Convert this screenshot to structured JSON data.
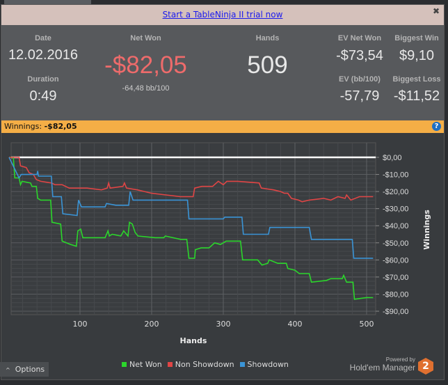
{
  "banner": {
    "link": "Start a TableNinja II trial now",
    "close": "✖"
  },
  "stats": {
    "date_label": "Date",
    "date": "12.02.2016",
    "duration_label": "Duration",
    "duration": "0:49",
    "net_won_label": "Net Won",
    "net_won": "-$82,05",
    "bb100": "-64,48 bb/100",
    "hands_label": "Hands",
    "hands": "509",
    "ev_net_won_label": "EV Net Won",
    "ev_net_won": "-$73,54",
    "biggest_win_label": "Biggest Win",
    "biggest_win": "$9,10",
    "ev_bb_label": "EV (bb/100)",
    "ev_bb": "-57,79",
    "biggest_loss_label": "Biggest Loss",
    "biggest_loss": "-$11,52",
    "net_won_color": "#ee6b6b"
  },
  "winnings_bar": {
    "label": "Winnings:",
    "value": "-$82,05",
    "help": "?"
  },
  "chart_data": {
    "type": "line",
    "xlabel": "Hands",
    "ylabel": "Winnings",
    "xlim": [
      0,
      512
    ],
    "ylim": [
      -93,
      3
    ],
    "xticks": [
      100,
      200,
      300,
      400,
      500
    ],
    "yticks": [
      0,
      -10,
      -20,
      -30,
      -40,
      -50,
      -60,
      -70,
      -80,
      -90
    ],
    "ytick_labels": [
      "$0,00",
      "-$10,00",
      "-$20,00",
      "-$30,00",
      "-$40,00",
      "-$50,00",
      "-$60,00",
      "-$70,00",
      "-$80,00",
      "-$90,00"
    ],
    "grid": true,
    "legend": "bottom",
    "series": [
      {
        "name": "Net Won",
        "color": "#2bd62b",
        "points": [
          [
            1,
            0
          ],
          [
            7,
            0
          ],
          [
            9,
            -12
          ],
          [
            15,
            -12
          ],
          [
            17,
            -16
          ],
          [
            19,
            -14
          ],
          [
            31,
            -15
          ],
          [
            33,
            -17
          ],
          [
            39,
            -17
          ],
          [
            41,
            -24
          ],
          [
            45,
            -25
          ],
          [
            59,
            -25
          ],
          [
            61,
            -38
          ],
          [
            73,
            -39
          ],
          [
            75,
            -49
          ],
          [
            87,
            -51
          ],
          [
            95,
            -52
          ],
          [
            97,
            -43
          ],
          [
            101,
            -42
          ],
          [
            104,
            -47
          ],
          [
            135,
            -47
          ],
          [
            139,
            -43
          ],
          [
            141,
            -46
          ],
          [
            145,
            -45
          ],
          [
            157,
            -46
          ],
          [
            161,
            -43
          ],
          [
            167,
            -46
          ],
          [
            169,
            -38
          ],
          [
            173,
            -39
          ],
          [
            177,
            -44
          ],
          [
            181,
            -46
          ],
          [
            205,
            -47
          ],
          [
            217,
            -47
          ],
          [
            219,
            -46
          ],
          [
            241,
            -48
          ],
          [
            249,
            -48
          ],
          [
            252,
            -59
          ],
          [
            260,
            -59
          ],
          [
            261,
            -54
          ],
          [
            269,
            -53
          ],
          [
            280,
            -53
          ],
          [
            288,
            -50
          ],
          [
            296,
            -51
          ],
          [
            304,
            -49
          ],
          [
            324,
            -49
          ],
          [
            327,
            -60
          ],
          [
            348,
            -60
          ],
          [
            354,
            -63
          ],
          [
            362,
            -62
          ],
          [
            364,
            -60
          ],
          [
            376,
            -62
          ],
          [
            388,
            -62
          ],
          [
            390,
            -65
          ],
          [
            400,
            -66
          ],
          [
            406,
            -68
          ],
          [
            420,
            -68
          ],
          [
            423,
            -73
          ],
          [
            444,
            -72
          ],
          [
            450,
            -71
          ],
          [
            466,
            -71
          ],
          [
            468,
            -69
          ],
          [
            472,
            -73
          ],
          [
            481,
            -73
          ],
          [
            483,
            -83
          ],
          [
            500,
            -82
          ],
          [
            509,
            -82.05
          ]
        ]
      },
      {
        "name": "Non Showdown",
        "color": "#e04545",
        "points": [
          [
            1,
            0
          ],
          [
            15,
            0
          ],
          [
            17,
            -5
          ],
          [
            25,
            -6
          ],
          [
            29,
            -9
          ],
          [
            35,
            -10
          ],
          [
            39,
            -13
          ],
          [
            45,
            -14
          ],
          [
            60,
            -15
          ],
          [
            65,
            -16
          ],
          [
            75,
            -16
          ],
          [
            85,
            -18
          ],
          [
            110,
            -18
          ],
          [
            130,
            -19
          ],
          [
            138,
            -18
          ],
          [
            140,
            -15
          ],
          [
            142,
            -18
          ],
          [
            160,
            -17
          ],
          [
            162,
            -15
          ],
          [
            165,
            -18
          ],
          [
            180,
            -19
          ],
          [
            190,
            -20
          ],
          [
            200,
            -21
          ],
          [
            220,
            -22
          ],
          [
            240,
            -23
          ],
          [
            258,
            -23
          ],
          [
            260,
            -18
          ],
          [
            270,
            -17
          ],
          [
            285,
            -17
          ],
          [
            293,
            -14
          ],
          [
            300,
            -16
          ],
          [
            305,
            -14
          ],
          [
            320,
            -14
          ],
          [
            350,
            -15
          ],
          [
            353,
            -18
          ],
          [
            370,
            -19
          ],
          [
            380,
            -20
          ],
          [
            385,
            -21
          ],
          [
            390,
            -21
          ],
          [
            395,
            -24
          ],
          [
            405,
            -25
          ],
          [
            410,
            -26
          ],
          [
            420,
            -25
          ],
          [
            440,
            -24
          ],
          [
            450,
            -25
          ],
          [
            460,
            -23
          ],
          [
            470,
            -24
          ],
          [
            472,
            -22
          ],
          [
            478,
            -25
          ],
          [
            490,
            -23
          ],
          [
            509,
            -23
          ]
        ]
      },
      {
        "name": "Showdown",
        "color": "#3a94d6",
        "points": [
          [
            1,
            0
          ],
          [
            15,
            -12
          ],
          [
            18,
            -10
          ],
          [
            40,
            -10
          ],
          [
            41,
            -8
          ],
          [
            42,
            -11
          ],
          [
            60,
            -11
          ],
          [
            62,
            -23
          ],
          [
            74,
            -23
          ],
          [
            76,
            -33
          ],
          [
            96,
            -34
          ],
          [
            98,
            -25
          ],
          [
            102,
            -29
          ],
          [
            135,
            -29
          ],
          [
            137,
            -27
          ],
          [
            150,
            -28
          ],
          [
            168,
            -28
          ],
          [
            170,
            -20
          ],
          [
            174,
            -25
          ],
          [
            250,
            -25
          ],
          [
            252,
            -36
          ],
          [
            300,
            -36
          ],
          [
            302,
            -35
          ],
          [
            326,
            -35
          ],
          [
            328,
            -45
          ],
          [
            363,
            -45
          ],
          [
            365,
            -41
          ],
          [
            420,
            -41
          ],
          [
            423,
            -48
          ],
          [
            480,
            -48
          ],
          [
            482,
            -59
          ],
          [
            509,
            -59
          ]
        ]
      }
    ]
  },
  "footer": {
    "options": "Options",
    "options_icon": "chevron-up",
    "powered_by": "Powered by",
    "brand": "Hold'em Manager",
    "brand_badge": "2"
  }
}
